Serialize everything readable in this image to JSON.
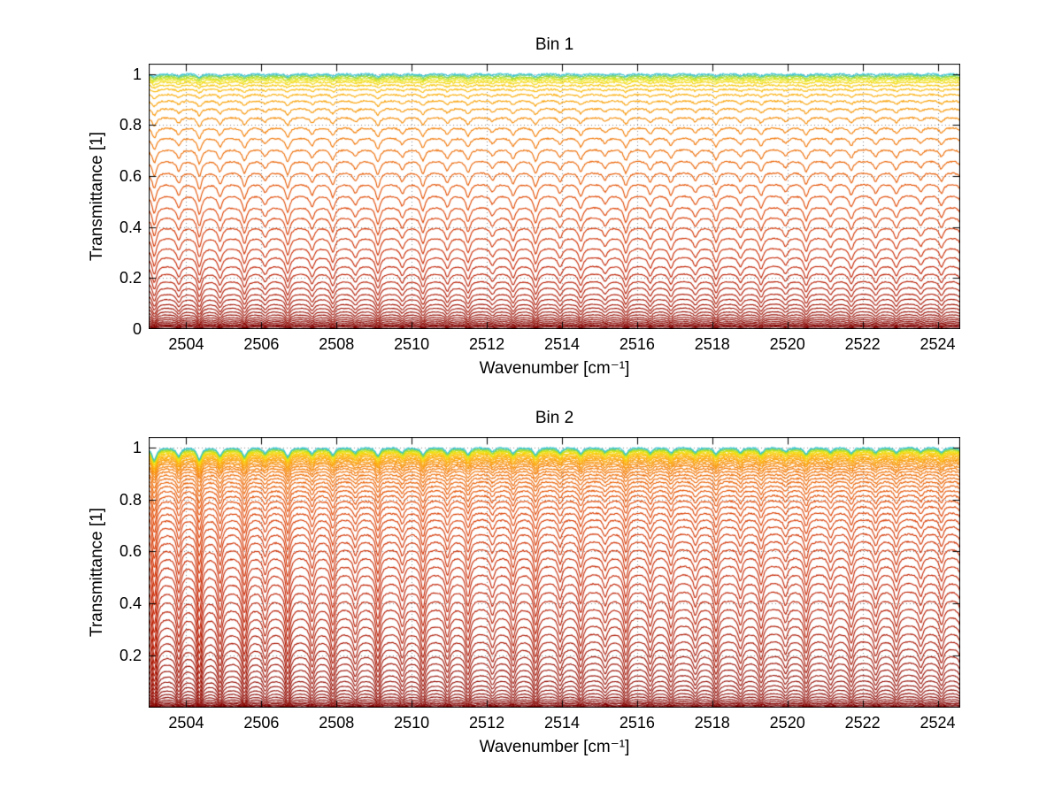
{
  "figure": {
    "background": "#ffffff"
  },
  "chart_data": [
    {
      "type": "line",
      "title": "Bin 1",
      "xlabel": "Wavenumber [cm⁻¹]",
      "ylabel": "Transmittance [1]",
      "xlim": [
        2503.0,
        2524.6
      ],
      "ylim": [
        0,
        1.04
      ],
      "xticks": [
        2504,
        2506,
        2508,
        2510,
        2512,
        2514,
        2516,
        2518,
        2520,
        2522,
        2524
      ],
      "yticks": [
        0,
        0.2,
        0.4,
        0.6,
        0.8,
        1
      ],
      "grid": true,
      "legend": "none",
      "description": "Stack of transmittance spectra for increasing absorber amounts; baselines listed in levels (top curve first), colored from cyan/yellow (high transmittance) to dark red (low transmittance), with periodic absorption dips at line_centers.",
      "colormap": [
        {
          "at": 0.0,
          "color": "#35c4d7"
        },
        {
          "at": 0.05,
          "color": "#a8dc20"
        },
        {
          "at": 0.1,
          "color": "#f2e410"
        },
        {
          "at": 0.18,
          "color": "#fdb50a"
        },
        {
          "at": 0.3,
          "color": "#f47a00"
        },
        {
          "at": 0.45,
          "color": "#e04300"
        },
        {
          "at": 0.6,
          "color": "#c22000"
        },
        {
          "at": 0.8,
          "color": "#9a0d00"
        },
        {
          "at": 1.0,
          "color": "#7d0000"
        }
      ],
      "line_centers": [
        2503.15,
        2503.8,
        2504.35,
        2504.9,
        2505.55,
        2506.1,
        2506.7,
        2507.35,
        2507.9,
        2508.5,
        2509.1,
        2509.75,
        2510.3,
        2510.95,
        2511.5,
        2512.15,
        2512.7,
        2513.3,
        2513.95,
        2514.5,
        2515.15,
        2515.7,
        2516.35,
        2516.9,
        2517.55,
        2518.1,
        2518.75,
        2519.3,
        2519.95,
        2520.5,
        2521.15,
        2521.7,
        2522.35,
        2522.9,
        2523.55,
        2524.1,
        2524.65
      ],
      "line_strengths": [
        0.9,
        0.6,
        1.0,
        0.7,
        0.85,
        0.5,
        0.95,
        0.65,
        0.8,
        0.55,
        1.0,
        0.6,
        0.9,
        0.7,
        0.85,
        0.5,
        0.75,
        0.95,
        0.6,
        0.8,
        0.5,
        0.9,
        0.65,
        0.7,
        0.55,
        0.85,
        0.6,
        0.75,
        0.5,
        0.8,
        0.55,
        0.7,
        0.6,
        0.65,
        0.5,
        0.6,
        0.55
      ],
      "line_width_cm": 0.07,
      "dip_alpha": 0.2,
      "dip_floor": 0.05,
      "left_boost": 0.25,
      "noise_amp": 0.005,
      "levels": [
        1.0,
        0.995,
        0.99,
        0.984,
        0.977,
        0.968,
        0.956,
        0.94,
        0.92,
        0.895,
        0.865,
        0.83,
        0.79,
        0.75,
        0.705,
        0.66,
        0.615,
        0.57,
        0.525,
        0.48,
        0.44,
        0.4,
        0.36,
        0.32,
        0.285,
        0.25,
        0.22,
        0.19,
        0.165,
        0.14,
        0.12,
        0.1,
        0.085,
        0.07,
        0.058,
        0.047,
        0.038,
        0.03,
        0.023,
        0.017,
        0.012,
        0.008
      ]
    },
    {
      "type": "line",
      "title": "Bin 2",
      "xlabel": "Wavenumber [cm⁻¹]",
      "ylabel": "Transmittance [1]",
      "xlim": [
        2503.0,
        2524.6
      ],
      "ylim": [
        0,
        1.04
      ],
      "xticks": [
        2504,
        2506,
        2508,
        2510,
        2512,
        2514,
        2516,
        2518,
        2520,
        2522,
        2524
      ],
      "yticks": [
        0.2,
        0.4,
        0.6,
        0.8,
        1
      ],
      "grid": true,
      "legend": "none",
      "description": "Same as Bin 1 but with curves clustered more densely near transmittance 1 and deeper absorption dips, strongest toward the low-wavenumber (left) side.",
      "colormap": [
        {
          "at": 0.0,
          "color": "#35c4d7"
        },
        {
          "at": 0.04,
          "color": "#a8dc20"
        },
        {
          "at": 0.08,
          "color": "#f2e410"
        },
        {
          "at": 0.15,
          "color": "#fdb50a"
        },
        {
          "at": 0.26,
          "color": "#f47a00"
        },
        {
          "at": 0.42,
          "color": "#e04300"
        },
        {
          "at": 0.6,
          "color": "#c22000"
        },
        {
          "at": 0.8,
          "color": "#9a0d00"
        },
        {
          "at": 1.0,
          "color": "#7d0000"
        }
      ],
      "line_centers": [
        2503.15,
        2503.8,
        2504.35,
        2504.9,
        2505.55,
        2506.1,
        2506.7,
        2507.35,
        2507.9,
        2508.5,
        2509.1,
        2509.75,
        2510.3,
        2510.95,
        2511.5,
        2512.15,
        2512.7,
        2513.3,
        2513.95,
        2514.5,
        2515.15,
        2515.7,
        2516.35,
        2516.9,
        2517.55,
        2518.1,
        2518.75,
        2519.3,
        2519.95,
        2520.5,
        2521.15,
        2521.7,
        2522.35,
        2522.9,
        2523.55,
        2524.1,
        2524.65
      ],
      "line_strengths": [
        0.95,
        0.65,
        1.0,
        0.75,
        0.9,
        0.55,
        1.0,
        0.7,
        0.85,
        0.6,
        1.0,
        0.65,
        0.95,
        0.75,
        0.9,
        0.55,
        0.8,
        1.0,
        0.65,
        0.85,
        0.55,
        0.95,
        0.7,
        0.75,
        0.6,
        0.9,
        0.65,
        0.8,
        0.55,
        0.85,
        0.6,
        0.75,
        0.65,
        0.7,
        0.55,
        0.65,
        0.6
      ],
      "line_width_cm": 0.07,
      "dip_alpha": 0.3,
      "dip_floor": 0.09,
      "left_boost": 1.0,
      "noise_amp": 0.005,
      "levels": [
        1.0,
        0.997,
        0.994,
        0.991,
        0.988,
        0.984,
        0.98,
        0.976,
        0.971,
        0.966,
        0.96,
        0.954,
        0.947,
        0.939,
        0.93,
        0.92,
        0.909,
        0.897,
        0.884,
        0.87,
        0.854,
        0.837,
        0.818,
        0.798,
        0.776,
        0.752,
        0.727,
        0.7,
        0.672,
        0.643,
        0.613,
        0.582,
        0.55,
        0.517,
        0.484,
        0.451,
        0.418,
        0.385,
        0.353,
        0.321,
        0.29,
        0.26,
        0.231,
        0.203,
        0.177,
        0.152,
        0.129,
        0.108,
        0.089,
        0.072,
        0.057,
        0.044,
        0.033,
        0.024,
        0.017,
        0.011,
        0.007
      ]
    }
  ],
  "style": {
    "grid_color": "#888888",
    "axis_color": "#000000",
    "text_color": "#000000"
  }
}
